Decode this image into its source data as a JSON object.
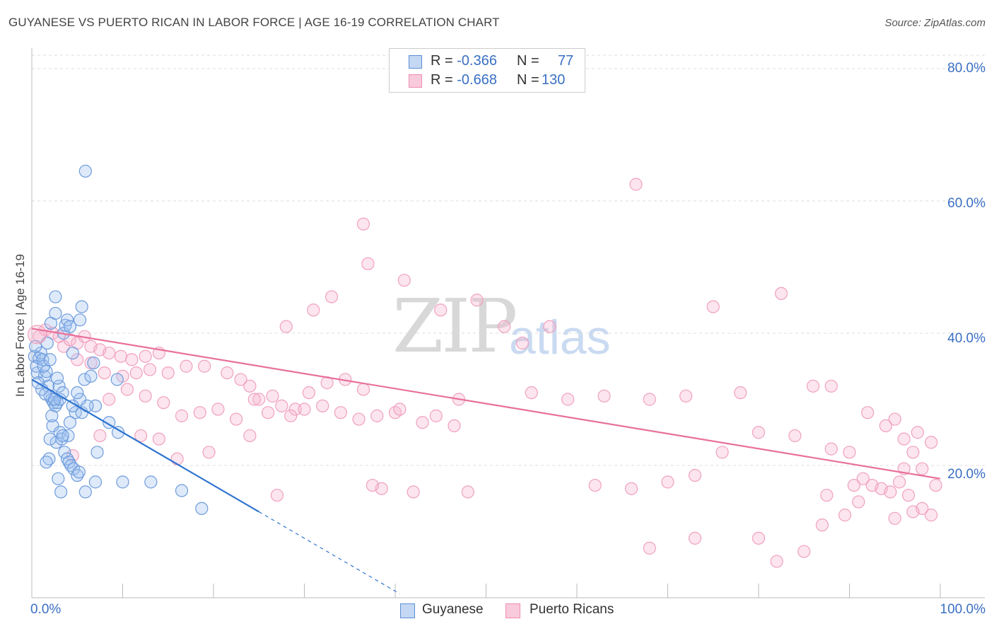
{
  "title": "GUYANESE VS PUERTO RICAN IN LABOR FORCE | AGE 16-19 CORRELATION CHART",
  "source": "Source: ZipAtlas.com",
  "watermark": {
    "a": "ZIP",
    "b": "atlas"
  },
  "colors": {
    "blue": "#5b8fd6",
    "blue_line": "#2f74d0",
    "pink": "#f08db0",
    "pink_line": "#e8709a",
    "axis_text": "#3a6fc4"
  },
  "legend": {
    "rows": [
      {
        "r_label": "R =",
        "r_value": "-0.366",
        "n_label": "N =",
        "n_value": "77"
      },
      {
        "r_label": "R =",
        "r_value": "-0.668",
        "n_label": "N =",
        "n_value": "130"
      }
    ]
  },
  "chart_data": {
    "type": "scatter",
    "title": "GUYANESE VS PUERTO RICAN IN LABOR FORCE | AGE 16-19 CORRELATION CHART",
    "xlabel": "",
    "ylabel": "In Labor Force | Age 16-19",
    "xlim": [
      0,
      100
    ],
    "ylim": [
      0,
      80
    ],
    "x_tick_labels": [
      "0.0%",
      "100.0%"
    ],
    "y_ticks": [
      20,
      40,
      60,
      80
    ],
    "y_tick_labels": [
      "20.0%",
      "40.0%",
      "60.0%",
      "80.0%"
    ],
    "series": [
      {
        "name": "Guyanese",
        "r": -0.366,
        "n": 77,
        "trend": {
          "x0": 0,
          "y0": 33.0,
          "x1": 25,
          "y1": 13.0,
          "dash_to_x": 40.5,
          "dash_to_y": 0.6
        },
        "points": [
          [
            0.3,
            36.5
          ],
          [
            0.6,
            34.0
          ],
          [
            0.8,
            36.2
          ],
          [
            0.5,
            35.0
          ],
          [
            1.0,
            37.0
          ],
          [
            1.2,
            36.0
          ],
          [
            1.4,
            33.5
          ],
          [
            1.6,
            34.2
          ],
          [
            1.8,
            32.0
          ],
          [
            2.0,
            30.5
          ],
          [
            2.2,
            30.0
          ],
          [
            2.4,
            29.5
          ],
          [
            2.6,
            29.0
          ],
          [
            2.8,
            29.5
          ],
          [
            2.1,
            41.5
          ],
          [
            2.6,
            43.0
          ],
          [
            2.6,
            45.5
          ],
          [
            3.5,
            40.0
          ],
          [
            3.7,
            41.2
          ],
          [
            3.9,
            42.0
          ],
          [
            4.2,
            41.0
          ],
          [
            4.5,
            37.0
          ],
          [
            5.3,
            42.0
          ],
          [
            5.5,
            44.0
          ],
          [
            5.9,
            64.5
          ],
          [
            2.3,
            26.0
          ],
          [
            2.7,
            23.5
          ],
          [
            3.1,
            25.0
          ],
          [
            3.3,
            24.0
          ],
          [
            3.6,
            22.0
          ],
          [
            3.9,
            21.0
          ],
          [
            4.1,
            20.5
          ],
          [
            4.3,
            20.0
          ],
          [
            4.6,
            19.5
          ],
          [
            5.0,
            18.5
          ],
          [
            5.2,
            19.0
          ],
          [
            2.0,
            24.0
          ],
          [
            1.9,
            21.0
          ],
          [
            2.9,
            18.0
          ],
          [
            3.2,
            16.0
          ],
          [
            5.9,
            16.0
          ],
          [
            7.0,
            17.5
          ],
          [
            7.2,
            22.0
          ],
          [
            8.5,
            26.5
          ],
          [
            9.5,
            25.0
          ],
          [
            7.0,
            29.0
          ],
          [
            4.8,
            28.0
          ],
          [
            5.5,
            28.0
          ],
          [
            6.1,
            29.0
          ],
          [
            5.3,
            30.0
          ],
          [
            5.8,
            33.0
          ],
          [
            6.5,
            33.5
          ],
          [
            5.0,
            31.0
          ],
          [
            4.5,
            29.0
          ],
          [
            3.1,
            30.0
          ],
          [
            2.2,
            27.5
          ],
          [
            4.2,
            26.5
          ],
          [
            4.0,
            24.5
          ],
          [
            3.4,
            24.5
          ],
          [
            1.6,
            20.5
          ],
          [
            10.0,
            17.5
          ],
          [
            13.1,
            17.5
          ],
          [
            16.5,
            16.2
          ],
          [
            18.7,
            13.5
          ],
          [
            9.4,
            33.0
          ],
          [
            1.1,
            31.5
          ],
          [
            1.5,
            30.8
          ],
          [
            2.5,
            30.0
          ],
          [
            3.0,
            32.0
          ],
          [
            0.7,
            32.5
          ],
          [
            1.3,
            35.0
          ],
          [
            2.0,
            36.0
          ],
          [
            2.8,
            33.2
          ],
          [
            0.4,
            38.0
          ],
          [
            1.7,
            38.5
          ],
          [
            6.8,
            35.5
          ],
          [
            3.4,
            31.0
          ]
        ]
      },
      {
        "name": "Puerto Ricans",
        "r": -0.668,
        "n": 130,
        "trend": {
          "x0": 0,
          "y0": 40.7,
          "x1": 100,
          "y1": 18.0
        },
        "points": [
          [
            0.8,
            39.5
          ],
          [
            1.5,
            40.5
          ],
          [
            2.3,
            40.0
          ],
          [
            3.0,
            39.5
          ],
          [
            3.5,
            38.0
          ],
          [
            4.2,
            39.0
          ],
          [
            5.0,
            38.5
          ],
          [
            5.8,
            39.5
          ],
          [
            6.5,
            38.0
          ],
          [
            7.5,
            37.5
          ],
          [
            8.5,
            37.0
          ],
          [
            9.8,
            36.5
          ],
          [
            11.0,
            36.0
          ],
          [
            12.5,
            36.5
          ],
          [
            14.0,
            37.0
          ],
          [
            5.0,
            36.0
          ],
          [
            6.5,
            35.5
          ],
          [
            8.0,
            34.0
          ],
          [
            10.0,
            33.5
          ],
          [
            11.5,
            34.0
          ],
          [
            13.0,
            34.5
          ],
          [
            15.0,
            34.0
          ],
          [
            17.0,
            35.0
          ],
          [
            19.0,
            35.0
          ],
          [
            21.5,
            34.0
          ],
          [
            23.0,
            33.0
          ],
          [
            24.0,
            32.0
          ],
          [
            25.0,
            30.0
          ],
          [
            26.0,
            28.0
          ],
          [
            27.5,
            29.0
          ],
          [
            29.0,
            28.5
          ],
          [
            30.0,
            28.5
          ],
          [
            32.0,
            29.0
          ],
          [
            34.0,
            28.0
          ],
          [
            36.0,
            27.0
          ],
          [
            38.0,
            27.5
          ],
          [
            40.0,
            28.0
          ],
          [
            43.0,
            26.5
          ],
          [
            47.0,
            30.0
          ],
          [
            55.0,
            31.0
          ],
          [
            59.0,
            30.0
          ],
          [
            63.0,
            30.5
          ],
          [
            68.0,
            30.0
          ],
          [
            72.0,
            30.5
          ],
          [
            78.0,
            31.0
          ],
          [
            86.0,
            32.0
          ],
          [
            95.0,
            27.0
          ],
          [
            97.5,
            25.0
          ],
          [
            99.0,
            23.5
          ],
          [
            88.0,
            22.5
          ],
          [
            90.0,
            22.0
          ],
          [
            84.0,
            24.5
          ],
          [
            80.0,
            25.0
          ],
          [
            76.0,
            22.0
          ],
          [
            73.0,
            18.5
          ],
          [
            70.0,
            17.5
          ],
          [
            66.0,
            16.5
          ],
          [
            62.0,
            17.0
          ],
          [
            48.0,
            16.0
          ],
          [
            42.0,
            16.0
          ],
          [
            38.5,
            16.5
          ],
          [
            37.5,
            17.0
          ],
          [
            27.0,
            15.5
          ],
          [
            24.0,
            24.5
          ],
          [
            19.5,
            22.0
          ],
          [
            16.0,
            21.0
          ],
          [
            14.0,
            24.0
          ],
          [
            12.0,
            24.5
          ],
          [
            7.5,
            24.5
          ],
          [
            4.5,
            21.5
          ],
          [
            8.5,
            30.0
          ],
          [
            10.5,
            31.5
          ],
          [
            12.5,
            30.5
          ],
          [
            14.5,
            29.5
          ],
          [
            16.5,
            27.5
          ],
          [
            18.5,
            28.0
          ],
          [
            20.5,
            28.5
          ],
          [
            22.5,
            27.0
          ],
          [
            24.5,
            30.0
          ],
          [
            26.5,
            30.5
          ],
          [
            28.5,
            27.5
          ],
          [
            30.5,
            31.0
          ],
          [
            32.5,
            32.5
          ],
          [
            34.5,
            33.0
          ],
          [
            36.5,
            31.5
          ],
          [
            40.5,
            28.5
          ],
          [
            44.5,
            27.5
          ],
          [
            46.5,
            26.0
          ],
          [
            28.0,
            41.0
          ],
          [
            31.0,
            43.5
          ],
          [
            33.0,
            45.5
          ],
          [
            36.5,
            56.5
          ],
          [
            37.0,
            50.5
          ],
          [
            41.0,
            48.0
          ],
          [
            45.0,
            43.5
          ],
          [
            49.0,
            45.0
          ],
          [
            52.0,
            41.0
          ],
          [
            54.0,
            38.5
          ],
          [
            57.0,
            41.0
          ],
          [
            66.5,
            62.5
          ],
          [
            75.0,
            44.0
          ],
          [
            82.5,
            46.0
          ],
          [
            88.0,
            32.0
          ],
          [
            92.0,
            28.0
          ],
          [
            94.0,
            26.0
          ],
          [
            96.0,
            24.0
          ],
          [
            97.0,
            22.0
          ],
          [
            98.0,
            19.5
          ],
          [
            99.5,
            17.0
          ],
          [
            96.5,
            15.5
          ],
          [
            95.5,
            17.5
          ],
          [
            94.5,
            16.0
          ],
          [
            92.5,
            17.0
          ],
          [
            91.0,
            14.5
          ],
          [
            89.5,
            12.5
          ],
          [
            87.5,
            15.5
          ],
          [
            87.0,
            11.0
          ],
          [
            85.0,
            7.0
          ],
          [
            82.0,
            5.5
          ],
          [
            80.0,
            9.0
          ],
          [
            68.0,
            7.5
          ],
          [
            73.0,
            9.0
          ],
          [
            95.0,
            12.0
          ],
          [
            98.0,
            13.5
          ],
          [
            99.0,
            12.5
          ],
          [
            97.0,
            13.0
          ],
          [
            96.0,
            19.5
          ],
          [
            93.5,
            16.5
          ],
          [
            91.5,
            18.0
          ],
          [
            90.5,
            17.0
          ]
        ]
      }
    ],
    "legend_position": "bottom-center"
  },
  "bottom_legend": [
    {
      "label": "Guyanese"
    },
    {
      "label": "Puerto Ricans"
    }
  ]
}
